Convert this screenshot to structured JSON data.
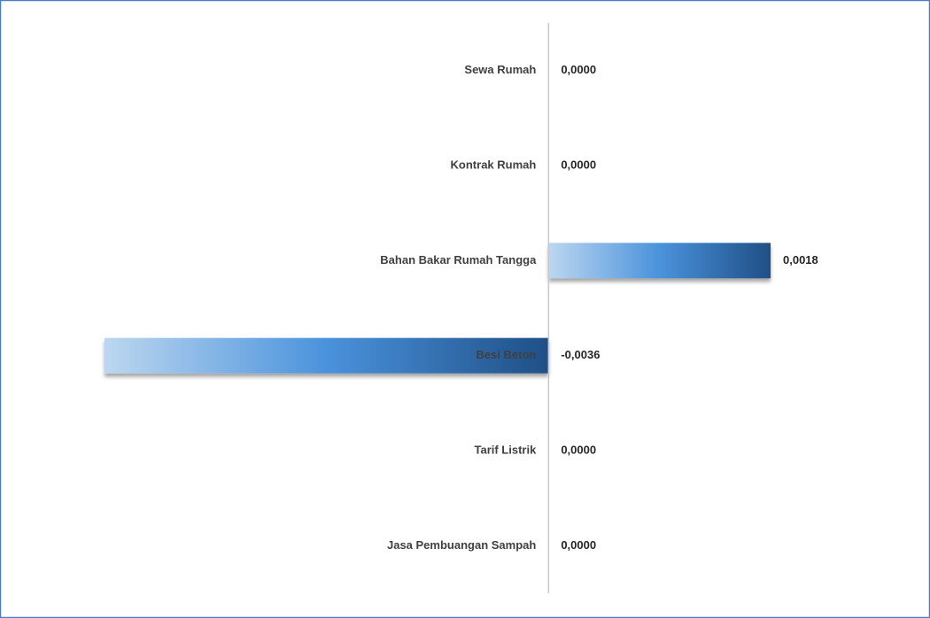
{
  "chart_data": {
    "type": "bar",
    "orientation": "horizontal",
    "categories": [
      "Sewa Rumah",
      "Kontrak Rumah",
      "Bahan Bakar Rumah Tangga",
      "Besi Beton",
      "Tarif Listrik",
      "Jasa Pembuangan Sampah"
    ],
    "values": [
      0,
      0,
      0.0018,
      -0.0036,
      0,
      0
    ],
    "value_labels": [
      "0,0000",
      "0,0000",
      "0,0018",
      "-0,0036",
      "0,0000",
      "0,0000"
    ],
    "xlim": [
      -0.0036,
      0.0018
    ],
    "colors": [
      "#bcd7f0",
      "#4a92dc",
      "#1f4f86"
    ],
    "grid": false
  }
}
